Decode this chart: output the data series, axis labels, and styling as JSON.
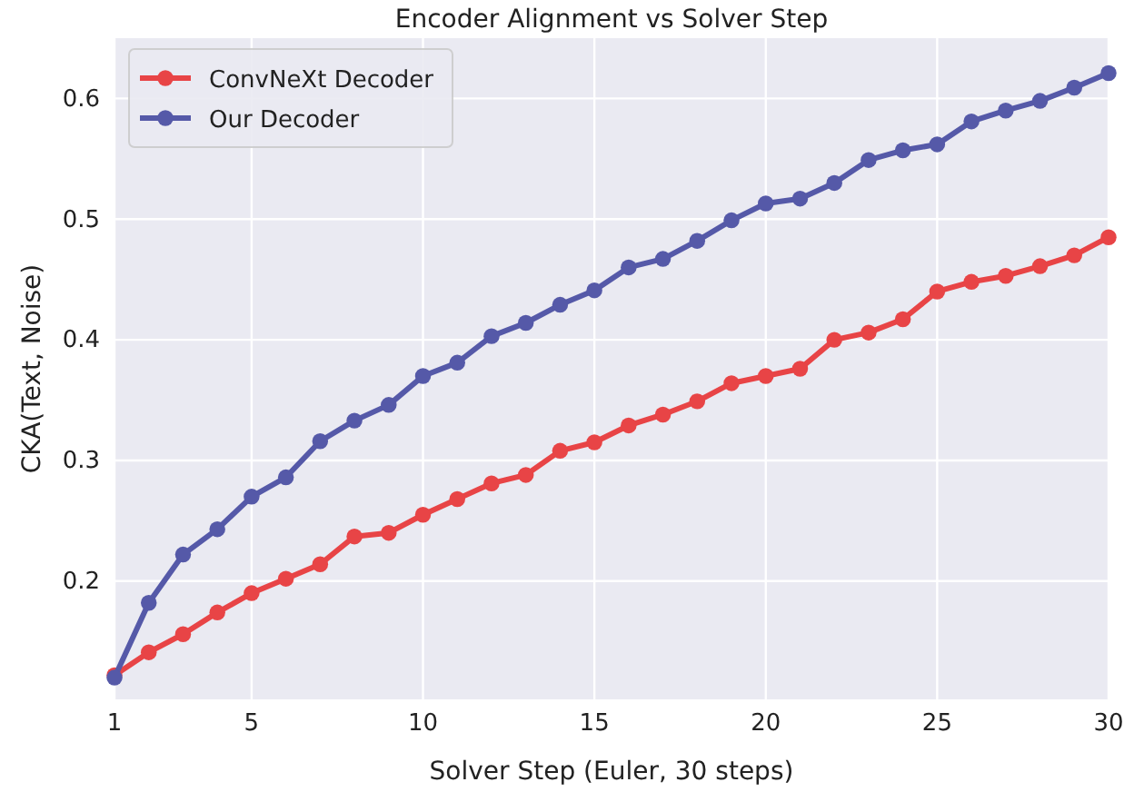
{
  "chart_data": {
    "type": "line",
    "title": "Encoder Alignment vs Solver Step",
    "xlabel": "Solver Step (Euler, 30 steps)",
    "ylabel": "CKA(Text, Noise)",
    "x": [
      1,
      2,
      3,
      4,
      5,
      6,
      7,
      8,
      9,
      10,
      11,
      12,
      13,
      14,
      15,
      16,
      17,
      18,
      19,
      20,
      21,
      22,
      23,
      24,
      25,
      26,
      27,
      28,
      29,
      30
    ],
    "series": [
      {
        "name": "ConvNeXt Decoder",
        "color": "#e84446",
        "values": [
          0.122,
          0.141,
          0.156,
          0.174,
          0.19,
          0.202,
          0.214,
          0.237,
          0.24,
          0.255,
          0.268,
          0.281,
          0.288,
          0.308,
          0.315,
          0.329,
          0.338,
          0.349,
          0.364,
          0.37,
          0.376,
          0.4,
          0.406,
          0.417,
          0.44,
          0.448,
          0.453,
          0.461,
          0.47,
          0.485
        ]
      },
      {
        "name": "Our Decoder",
        "color": "#5559a8",
        "values": [
          0.12,
          0.182,
          0.222,
          0.243,
          0.27,
          0.286,
          0.316,
          0.333,
          0.346,
          0.37,
          0.381,
          0.403,
          0.414,
          0.429,
          0.441,
          0.46,
          0.467,
          0.482,
          0.499,
          0.513,
          0.517,
          0.53,
          0.549,
          0.557,
          0.562,
          0.581,
          0.59,
          0.598,
          0.609,
          0.621
        ]
      }
    ],
    "xlim": [
      1,
      30
    ],
    "xticks": [
      1,
      5,
      10,
      15,
      20,
      25,
      30
    ],
    "ylim": [
      0.102,
      0.65
    ],
    "yticks": [
      {
        "value": 0.2,
        "label": "0.2"
      },
      {
        "value": 0.3,
        "label": "0.3"
      },
      {
        "value": 0.4,
        "label": "0.4"
      },
      {
        "value": 0.5,
        "label": "0.5"
      },
      {
        "value": 0.6,
        "label": "0.6"
      }
    ],
    "grid": true,
    "legend": "top left",
    "marker": "circle",
    "line_style": "solid"
  }
}
